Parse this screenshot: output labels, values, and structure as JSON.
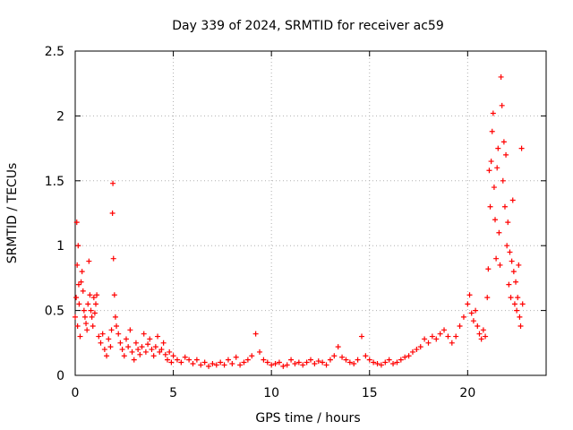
{
  "chart_data": {
    "type": "scatter",
    "title": "Day 339 of 2024, SRMTID for receiver ac59",
    "xlabel": "GPS time / hours",
    "ylabel": "SRMTID / TECUs",
    "xlim": [
      0,
      24
    ],
    "ylim": [
      0,
      2.5
    ],
    "x_ticks": [
      0,
      5,
      10,
      15,
      20
    ],
    "x_tick_labels": [
      "0",
      "5",
      "10",
      "15",
      "20"
    ],
    "y_ticks": [
      0,
      0.5,
      1,
      1.5,
      2,
      2.5
    ],
    "y_tick_labels": [
      "0",
      "0.5",
      "1",
      "1.5",
      "2",
      "2.5"
    ],
    "grid": true,
    "marker": "+",
    "series": [
      {
        "name": "SRMTID",
        "color": "#ff0000",
        "x": [
          0.0,
          0.05,
          0.08,
          0.1,
          0.12,
          0.15,
          0.18,
          0.2,
          0.25,
          0.3,
          0.35,
          0.4,
          0.45,
          0.5,
          0.55,
          0.6,
          0.65,
          0.7,
          0.75,
          0.8,
          0.85,
          0.9,
          0.95,
          1.0,
          1.05,
          1.1,
          1.2,
          1.3,
          1.4,
          1.5,
          1.6,
          1.7,
          1.8,
          1.85,
          1.9,
          1.92,
          1.95,
          2.0,
          2.05,
          2.1,
          2.2,
          2.3,
          2.4,
          2.5,
          2.6,
          2.7,
          2.8,
          2.9,
          3.0,
          3.1,
          3.2,
          3.3,
          3.4,
          3.5,
          3.6,
          3.7,
          3.8,
          3.9,
          4.0,
          4.1,
          4.2,
          4.3,
          4.4,
          4.5,
          4.6,
          4.7,
          4.8,
          4.9,
          5.0,
          5.2,
          5.4,
          5.6,
          5.8,
          6.0,
          6.2,
          6.4,
          6.6,
          6.8,
          7.0,
          7.2,
          7.4,
          7.6,
          7.8,
          8.0,
          8.2,
          8.4,
          8.6,
          8.8,
          9.0,
          9.2,
          9.4,
          9.6,
          9.8,
          10.0,
          10.2,
          10.4,
          10.6,
          10.8,
          11.0,
          11.2,
          11.4,
          11.6,
          11.8,
          12.0,
          12.2,
          12.4,
          12.6,
          12.8,
          13.0,
          13.2,
          13.4,
          13.6,
          13.8,
          14.0,
          14.2,
          14.4,
          14.6,
          14.8,
          15.0,
          15.2,
          15.4,
          15.6,
          15.8,
          16.0,
          16.2,
          16.4,
          16.6,
          16.8,
          17.0,
          17.2,
          17.4,
          17.6,
          17.8,
          18.0,
          18.2,
          18.4,
          18.6,
          18.8,
          19.0,
          19.2,
          19.4,
          19.6,
          19.8,
          20.0,
          20.1,
          20.2,
          20.3,
          20.4,
          20.5,
          20.6,
          20.7,
          20.8,
          20.9,
          21.0,
          21.05,
          21.1,
          21.15,
          21.2,
          21.25,
          21.3,
          21.35,
          21.4,
          21.45,
          21.5,
          21.55,
          21.6,
          21.65,
          21.7,
          21.75,
          21.8,
          21.85,
          21.9,
          21.95,
          22.0,
          22.05,
          22.1,
          22.15,
          22.2,
          22.25,
          22.3,
          22.35,
          22.4,
          22.45,
          22.5,
          22.55,
          22.6,
          22.65,
          22.7,
          22.75,
          22.8
        ],
        "y": [
          0.45,
          0.6,
          1.18,
          0.85,
          0.38,
          1.0,
          0.7,
          0.55,
          0.3,
          0.72,
          0.8,
          0.65,
          0.5,
          0.45,
          0.4,
          0.35,
          0.55,
          0.88,
          0.62,
          0.5,
          0.45,
          0.38,
          0.6,
          0.48,
          0.55,
          0.62,
          0.3,
          0.25,
          0.32,
          0.2,
          0.15,
          0.28,
          0.22,
          0.35,
          1.25,
          1.48,
          0.9,
          0.62,
          0.45,
          0.38,
          0.32,
          0.25,
          0.2,
          0.15,
          0.28,
          0.22,
          0.35,
          0.18,
          0.12,
          0.25,
          0.2,
          0.16,
          0.22,
          0.32,
          0.18,
          0.24,
          0.28,
          0.2,
          0.15,
          0.22,
          0.3,
          0.18,
          0.2,
          0.25,
          0.16,
          0.12,
          0.18,
          0.1,
          0.15,
          0.12,
          0.1,
          0.14,
          0.12,
          0.09,
          0.12,
          0.08,
          0.1,
          0.07,
          0.09,
          0.08,
          0.1,
          0.08,
          0.12,
          0.09,
          0.14,
          0.08,
          0.1,
          0.12,
          0.15,
          0.32,
          0.18,
          0.12,
          0.1,
          0.08,
          0.09,
          0.1,
          0.07,
          0.08,
          0.12,
          0.09,
          0.1,
          0.08,
          0.1,
          0.12,
          0.09,
          0.11,
          0.1,
          0.08,
          0.12,
          0.15,
          0.22,
          0.14,
          0.12,
          0.1,
          0.09,
          0.12,
          0.3,
          0.15,
          0.12,
          0.1,
          0.09,
          0.08,
          0.1,
          0.12,
          0.09,
          0.1,
          0.12,
          0.14,
          0.15,
          0.18,
          0.2,
          0.22,
          0.28,
          0.25,
          0.3,
          0.28,
          0.32,
          0.35,
          0.3,
          0.25,
          0.3,
          0.38,
          0.45,
          0.55,
          0.62,
          0.48,
          0.42,
          0.5,
          0.38,
          0.32,
          0.28,
          0.35,
          0.3,
          0.6,
          0.82,
          1.58,
          1.3,
          1.65,
          1.88,
          2.02,
          1.45,
          1.2,
          0.9,
          1.6,
          1.75,
          1.1,
          0.85,
          2.3,
          2.08,
          1.5,
          1.8,
          1.3,
          1.7,
          1.0,
          1.18,
          0.7,
          0.95,
          0.6,
          0.88,
          1.35,
          0.8,
          0.55,
          0.72,
          0.5,
          0.6,
          0.85,
          0.45,
          0.38,
          1.75,
          0.55
        ]
      }
    ]
  }
}
